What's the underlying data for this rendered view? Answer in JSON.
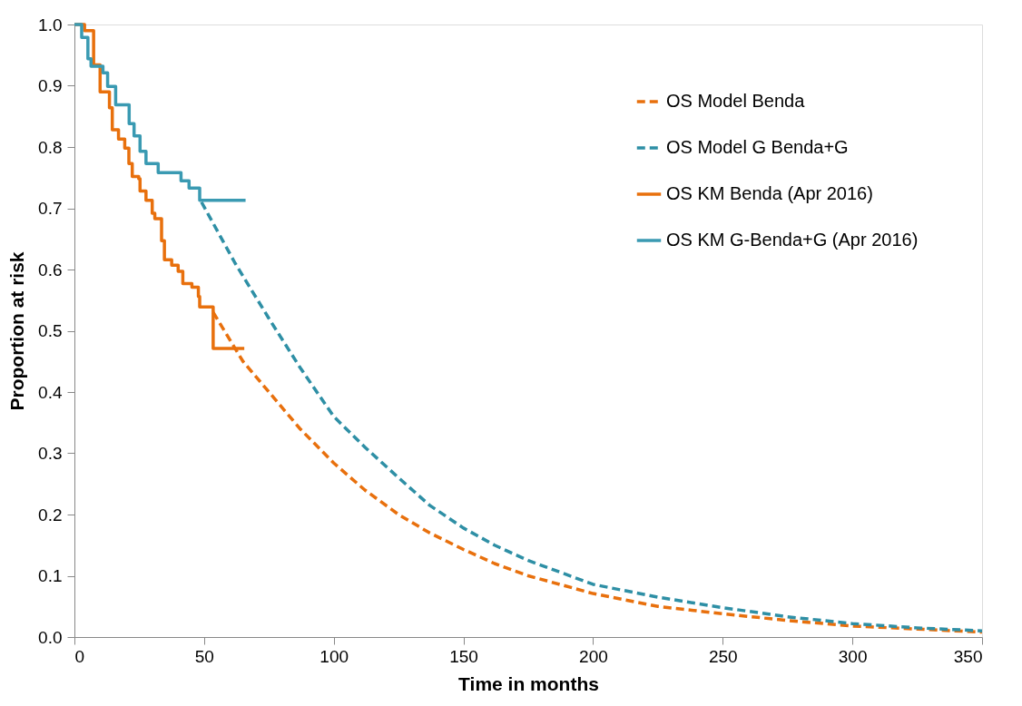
{
  "chart_data": {
    "type": "line",
    "xlabel": "Time in months",
    "ylabel": "Proportion at risk",
    "xlim": [
      0,
      350
    ],
    "xticks": [
      0,
      50,
      100,
      150,
      200,
      250,
      300,
      350
    ],
    "ylim": [
      0,
      1
    ],
    "yticks": [
      {
        "value": 0,
        "label": "0.0"
      },
      0.1,
      0.2,
      0.3,
      0.4,
      0.5,
      0.6,
      0.7,
      0.8,
      0.9,
      {
        "value": 1,
        "label": "1.0"
      }
    ],
    "grid": false,
    "legend": "top right",
    "marker": "none",
    "series": [
      {
        "name": "OS Model Benda",
        "color": "#e8700d",
        "type": "line",
        "line_style": "dashed",
        "x": [
          53.5,
          65,
          75,
          87,
          100,
          112,
          125,
          137,
          150,
          162,
          175,
          200,
          225,
          250,
          275,
          300,
          325,
          350
        ],
        "values": [
          0.53,
          0.45,
          0.4,
          0.34,
          0.284,
          0.24,
          0.2,
          0.17,
          0.143,
          0.12,
          0.1,
          0.071,
          0.05,
          0.038,
          0.027,
          0.018,
          0.013,
          0.008
        ]
      },
      {
        "name": "OS Model G Benda+G",
        "color": "#2e8fa5",
        "type": "line",
        "line_style": "dashed",
        "x": [
          49,
          62,
          75,
          87,
          100,
          112,
          125,
          137,
          150,
          162,
          175,
          200,
          225,
          250,
          275,
          300,
          325,
          350
        ],
        "values": [
          0.71,
          0.61,
          0.52,
          0.44,
          0.36,
          0.31,
          0.26,
          0.215,
          0.178,
          0.15,
          0.125,
          0.086,
          0.065,
          0.048,
          0.033,
          0.022,
          0.015,
          0.01
        ]
      },
      {
        "name": "OS KM Benda (Apr 2016)",
        "color": "#e8700d",
        "type": "step",
        "line_style": "solid",
        "x": [
          0,
          3.9,
          7.4,
          9.9,
          13.5,
          14.6,
          17,
          19.4,
          21,
          22.3,
          24.8,
          25.3,
          27.6,
          30,
          31,
          33.6,
          34.7,
          37.5,
          40,
          41.8,
          45.3,
          47.8,
          48.3,
          53.5,
          65.5
        ],
        "values": [
          1.0,
          0.99,
          0.934,
          0.89,
          0.864,
          0.828,
          0.813,
          0.798,
          0.773,
          0.752,
          0.748,
          0.728,
          0.713,
          0.692,
          0.683,
          0.647,
          0.616,
          0.607,
          0.597,
          0.577,
          0.571,
          0.556,
          0.539,
          0.471,
          0.471
        ]
      },
      {
        "name": "OS KM G-Benda+G (Apr 2016)",
        "color": "#3a9ab2",
        "type": "step",
        "line_style": "solid",
        "x": [
          0,
          2.8,
          5.2,
          6.4,
          11,
          12.8,
          15.9,
          21.1,
          23,
          25.3,
          27.6,
          32.3,
          41.1,
          44.2,
          48.3,
          66
        ],
        "values": [
          1.0,
          0.979,
          0.944,
          0.932,
          0.921,
          0.899,
          0.869,
          0.838,
          0.818,
          0.793,
          0.773,
          0.758,
          0.745,
          0.733,
          0.713,
          0.713
        ]
      }
    ]
  }
}
